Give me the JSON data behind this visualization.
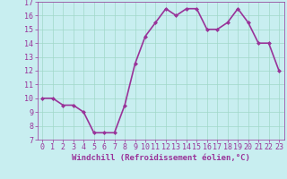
{
  "x": [
    0,
    1,
    2,
    3,
    4,
    5,
    6,
    7,
    8,
    9,
    10,
    11,
    12,
    13,
    14,
    15,
    16,
    17,
    18,
    19,
    20,
    21,
    22,
    23
  ],
  "y": [
    10.0,
    10.0,
    9.5,
    9.5,
    9.0,
    7.5,
    7.5,
    7.5,
    9.5,
    12.5,
    14.5,
    15.5,
    16.5,
    16.0,
    16.5,
    16.5,
    15.0,
    15.0,
    15.5,
    16.5,
    15.5,
    14.0,
    14.0,
    12.0
  ],
  "line_color": "#993399",
  "marker": "D",
  "marker_size": 2.0,
  "bg_color": "#c8eef0",
  "grid_color": "#a0d8c8",
  "xlabel": "Windchill (Refroidissement éolien,°C)",
  "xlim": [
    -0.5,
    23.5
  ],
  "ylim": [
    7,
    17
  ],
  "yticks": [
    7,
    8,
    9,
    10,
    11,
    12,
    13,
    14,
    15,
    16,
    17
  ],
  "xticks": [
    0,
    1,
    2,
    3,
    4,
    5,
    6,
    7,
    8,
    9,
    10,
    11,
    12,
    13,
    14,
    15,
    16,
    17,
    18,
    19,
    20,
    21,
    22,
    23
  ],
  "tick_color": "#993399",
  "label_fontsize": 6.5,
  "tick_fontsize": 6.0,
  "line_width": 1.2
}
